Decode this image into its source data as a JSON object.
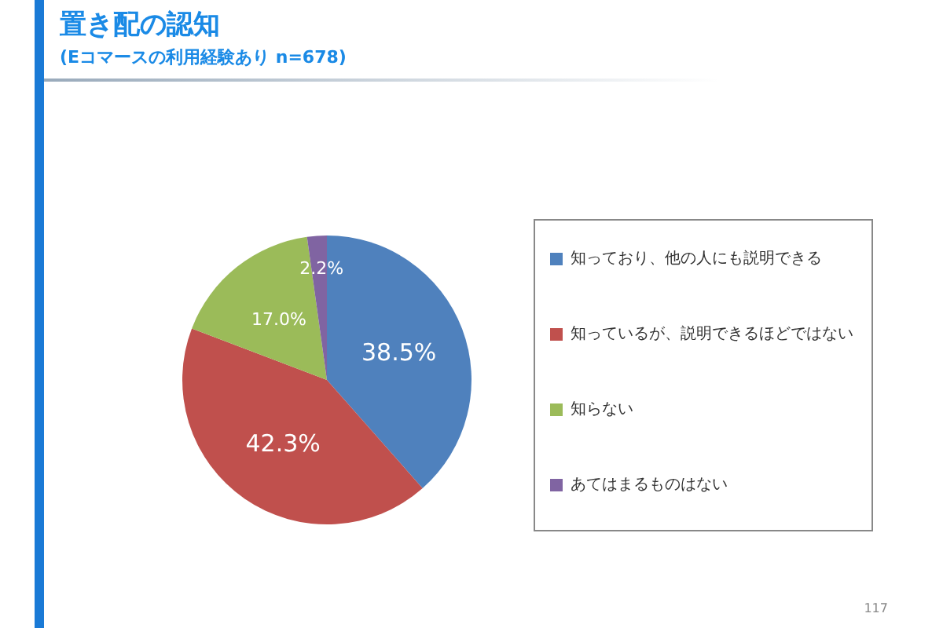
{
  "chart_data": {
    "type": "pie",
    "title": "置き配の認知",
    "subtitle": "(Eコマースの利用経験あり n=678)",
    "categories": [
      "知っており、他の人にも説明できる",
      "知っているが、説明できるほどではない",
      "知らない",
      "あてはまるものはない"
    ],
    "values": [
      38.5,
      42.3,
      17.0,
      2.2
    ],
    "colors": [
      "#4f81bd",
      "#c0504d",
      "#9bbb59",
      "#8064a2"
    ],
    "value_labels": [
      "38.5%",
      "42.3%",
      "17.0%",
      "2.2%"
    ],
    "legend": "right",
    "annotations": [
      "117"
    ]
  }
}
